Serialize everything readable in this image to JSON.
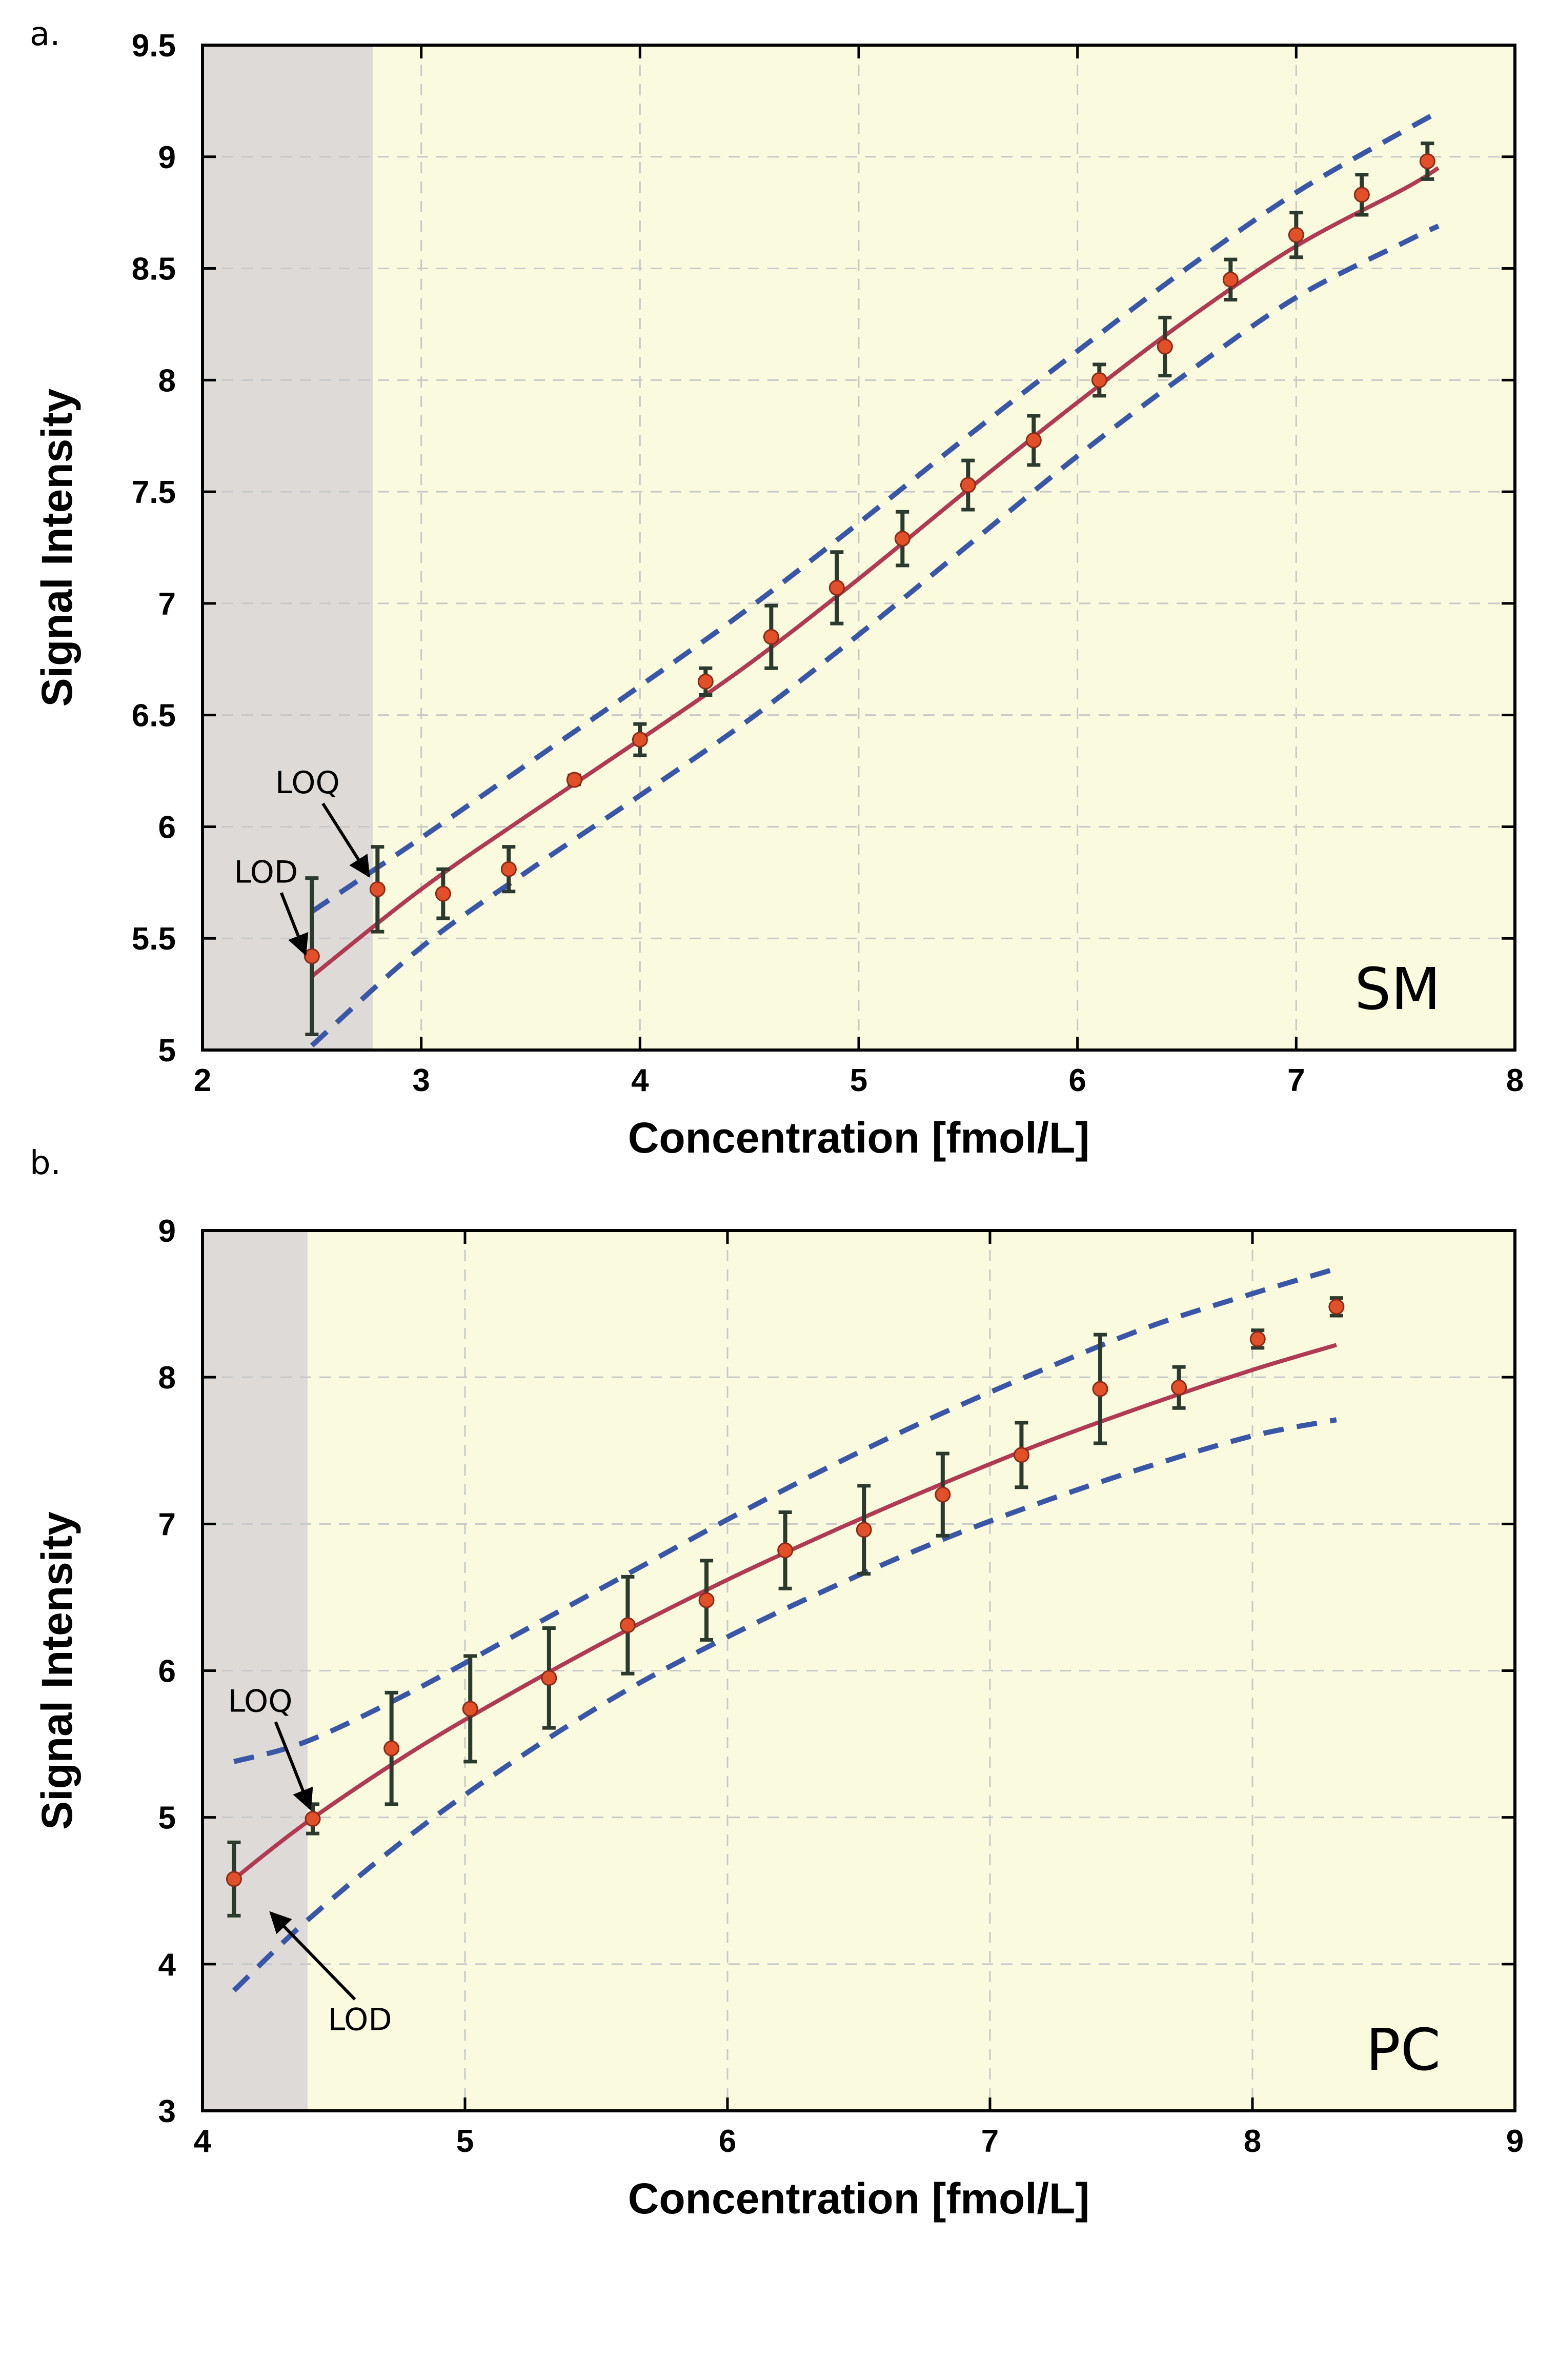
{
  "colors": {
    "valid_region": "#fafade",
    "below_loq_region": "#dedad8",
    "fit_line": "#b03a52",
    "prediction_band": "#3a56a6",
    "point_fill": "#e2502a",
    "error_bar": "#2c3a2e",
    "grid": "#c8c8c8"
  },
  "chart_data": [
    {
      "panel": "a.",
      "type": "scatter",
      "tag": "SM",
      "xlabel": "Concentration [fmol/L]",
      "ylabel": "Signal Intensity",
      "xlim": [
        2,
        8
      ],
      "ylim": [
        5,
        9.5
      ],
      "xticks": [
        2,
        3,
        4,
        5,
        6,
        7,
        8
      ],
      "yticks": [
        5,
        5.5,
        6,
        6.5,
        7,
        7.5,
        8,
        8.5,
        9,
        9.5
      ],
      "grid": true,
      "loq_boundary_x": 2.78,
      "points": {
        "x": [
          2.5,
          2.8,
          3.1,
          3.4,
          3.7,
          4.0,
          4.3,
          4.6,
          4.9,
          5.2,
          5.5,
          5.8,
          6.1,
          6.4,
          6.7,
          7.0,
          7.3,
          7.6
        ],
        "y": [
          5.42,
          5.72,
          5.7,
          5.81,
          6.21,
          6.39,
          6.65,
          6.85,
          7.07,
          7.29,
          7.53,
          7.73,
          8.0,
          8.15,
          8.45,
          8.65,
          8.83,
          8.98
        ],
        "err": [
          0.35,
          0.19,
          0.11,
          0.1,
          0.02,
          0.07,
          0.06,
          0.14,
          0.16,
          0.12,
          0.11,
          0.11,
          0.07,
          0.13,
          0.09,
          0.1,
          0.09,
          0.08
        ]
      },
      "fit": {
        "x": [
          2.5,
          3.0,
          3.5,
          4.0,
          4.5,
          5.0,
          5.5,
          6.0,
          6.5,
          7.0,
          7.5,
          7.65
        ],
        "y": [
          5.33,
          5.72,
          6.06,
          6.39,
          6.73,
          7.11,
          7.51,
          7.9,
          8.27,
          8.6,
          8.86,
          8.95
        ]
      },
      "band_upper": {
        "x": [
          2.5,
          3.0,
          3.5,
          4.0,
          4.5,
          5.0,
          5.5,
          6.0,
          6.5,
          7.0,
          7.5,
          7.65
        ],
        "y": [
          5.62,
          5.95,
          6.29,
          6.63,
          6.98,
          7.36,
          7.75,
          8.13,
          8.5,
          8.84,
          9.12,
          9.2
        ]
      },
      "band_lower": {
        "x": [
          2.5,
          3.0,
          3.5,
          4.0,
          4.5,
          5.0,
          5.5,
          6.0,
          6.5,
          7.0,
          7.5,
          7.65
        ],
        "y": [
          5.02,
          5.46,
          5.81,
          6.14,
          6.48,
          6.86,
          7.26,
          7.66,
          8.03,
          8.37,
          8.62,
          8.69
        ]
      },
      "annotations": [
        {
          "text": "LOD",
          "text_xy": [
            2.29,
            5.75
          ],
          "tip_xy": [
            2.47,
            5.43
          ]
        },
        {
          "text": "LOQ",
          "text_xy": [
            2.48,
            6.15
          ],
          "tip_xy": [
            2.76,
            5.78
          ]
        }
      ]
    },
    {
      "panel": "b.",
      "type": "scatter",
      "tag": "PC",
      "xlabel": "Concentration [fmol/L]",
      "ylabel": "Signal Intensity",
      "xlim": [
        4,
        9
      ],
      "ylim": [
        3,
        9
      ],
      "xticks": [
        4,
        5,
        6,
        7,
        8,
        9
      ],
      "yticks": [
        3,
        4,
        5,
        6,
        7,
        8,
        9
      ],
      "grid": true,
      "loq_boundary_x": 4.4,
      "points": {
        "x": [
          4.12,
          4.42,
          4.72,
          5.02,
          5.32,
          5.62,
          5.92,
          6.22,
          6.52,
          6.82,
          7.12,
          7.42,
          7.72,
          8.02,
          8.32
        ],
        "y": [
          4.58,
          4.99,
          5.47,
          5.74,
          5.95,
          6.31,
          6.48,
          6.82,
          6.96,
          7.2,
          7.47,
          7.92,
          7.93,
          8.26,
          8.48
        ],
        "err": [
          0.25,
          0.1,
          0.38,
          0.36,
          0.34,
          0.33,
          0.27,
          0.26,
          0.3,
          0.28,
          0.22,
          0.37,
          0.14,
          0.06,
          0.06
        ]
      },
      "fit": {
        "x": [
          4.12,
          4.4,
          4.8,
          5.2,
          5.6,
          6.0,
          6.4,
          6.8,
          7.2,
          7.6,
          8.0,
          8.32
        ],
        "y": [
          4.58,
          4.97,
          5.45,
          5.87,
          6.26,
          6.62,
          6.95,
          7.26,
          7.55,
          7.81,
          8.05,
          8.22
        ]
      },
      "band_upper": {
        "x": [
          4.12,
          4.4,
          4.8,
          5.2,
          5.6,
          6.0,
          6.4,
          6.8,
          7.2,
          7.6,
          8.0,
          8.32
        ],
        "y": [
          5.38,
          5.52,
          5.86,
          6.25,
          6.64,
          7.03,
          7.4,
          7.74,
          8.05,
          8.34,
          8.57,
          8.74
        ]
      },
      "band_lower": {
        "x": [
          4.12,
          4.4,
          4.8,
          5.2,
          5.6,
          6.0,
          6.4,
          6.8,
          7.2,
          7.6,
          8.0,
          8.32
        ],
        "y": [
          3.82,
          4.3,
          4.89,
          5.4,
          5.85,
          6.23,
          6.57,
          6.88,
          7.15,
          7.39,
          7.6,
          7.71
        ]
      },
      "annotations": [
        {
          "text": "LOQ",
          "text_xy": [
            4.22,
            5.72
          ],
          "tip_xy": [
            4.41,
            5.06
          ]
        },
        {
          "text": "LOD",
          "text_xy": [
            4.6,
            3.55
          ],
          "tip_xy": [
            4.26,
            4.35
          ]
        }
      ]
    }
  ]
}
